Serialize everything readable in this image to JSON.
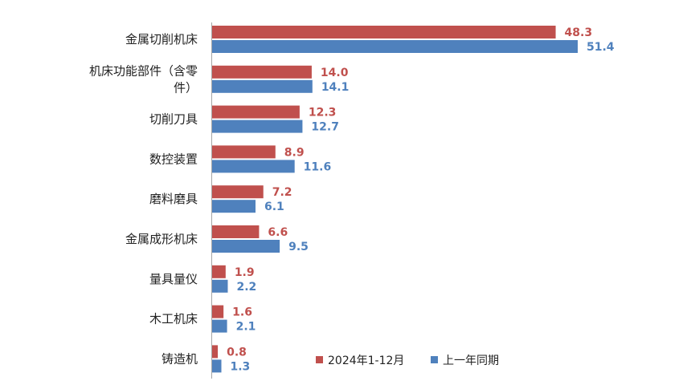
{
  "chart_data": {
    "type": "bar",
    "orientation": "horizontal",
    "categories": [
      [
        "金属切削机床"
      ],
      [
        "机床功能部件（含零",
        "件）"
      ],
      [
        "切削刀具"
      ],
      [
        "数控装置"
      ],
      [
        "磨料磨具"
      ],
      [
        "金属成形机床"
      ],
      [
        "量具量仪"
      ],
      [
        "木工机床"
      ],
      [
        "铸造机"
      ]
    ],
    "series": [
      {
        "name": "2024年1-12月",
        "color": "#c0504d",
        "values": [
          48.3,
          14.0,
          12.3,
          8.9,
          7.2,
          6.6,
          1.9,
          1.6,
          0.8
        ],
        "labels": [
          "48.3",
          "14.0",
          "12.3",
          "8.9",
          "7.2",
          "6.6",
          "1.9",
          "1.6",
          "0.8"
        ]
      },
      {
        "name": "上一年同期",
        "color": "#4f81bd",
        "values": [
          51.4,
          14.1,
          12.7,
          11.6,
          6.1,
          9.5,
          2.2,
          2.1,
          1.3
        ],
        "labels": [
          "51.4",
          "14.1",
          "12.7",
          "11.6",
          "6.1",
          "9.5",
          "2.2",
          "2.1",
          "1.3"
        ]
      }
    ],
    "xlim": [
      0,
      51.4
    ],
    "grid": false,
    "legend_position": "bottom-right"
  }
}
